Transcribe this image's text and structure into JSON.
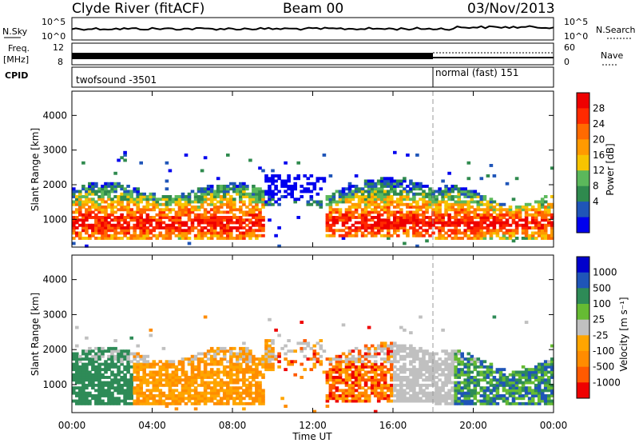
{
  "header": {
    "station": "Clyde River (fitACF)",
    "beam": "Beam 00",
    "date": "03/Nov/2013"
  },
  "nsky_panel": {
    "left_label": "N.Sky",
    "left_ticks": [
      "10^5",
      "10^0"
    ],
    "right_label": "N.Search",
    "right_ticks": [
      "10^5",
      "10^0"
    ]
  },
  "freq_panel": {
    "label_top": "Freq.",
    "label_unit": "[MHz]",
    "left_ticks": [
      "12",
      "8"
    ],
    "right_label": "Nave",
    "right_ticks": [
      "60",
      "0"
    ]
  },
  "cpid_panel": {
    "label": "CPID",
    "mode_1": "twofsound -3501",
    "mode_2": "normal (fast) 151",
    "mode_switch_hour": 18
  },
  "colors": {
    "power": [
      "#0000ee",
      "#1f55b8",
      "#2f8a4e",
      "#5bb85b",
      "#f7c400",
      "#ff9a00",
      "#ff6a00",
      "#ff2a00",
      "#ee0000"
    ],
    "velocity": [
      "#ee0000",
      "#ff5a00",
      "#ff8c00",
      "#ffa500",
      "#c0c0c0",
      "#66bb33",
      "#2e8b57",
      "#1f55b8",
      "#0000cc"
    ]
  },
  "chart_data": [
    {
      "type": "heatmap",
      "name": "power",
      "ylabel": "Slant Range [km]",
      "ylim": [
        200,
        4700
      ],
      "yticks": [
        "4000",
        "3000",
        "2000",
        "1000"
      ],
      "colorbar_label": "Power [dB]",
      "colorbar_ticks": [
        "28",
        "24",
        "20",
        "16",
        "12",
        "8",
        "4"
      ]
    },
    {
      "type": "heatmap",
      "name": "velocity",
      "ylabel": "Slant Range [km]",
      "ylim": [
        200,
        4700
      ],
      "yticks": [
        "4000",
        "3000",
        "2000",
        "1000"
      ],
      "colorbar_label": "Velocity [m s⁻¹]",
      "colorbar_ticks": [
        "1000",
        "500",
        "100",
        "25",
        "-25",
        "-100",
        "-500",
        "-1000"
      ]
    }
  ],
  "xaxis": {
    "label": "Time UT",
    "xlim": [
      0,
      24
    ],
    "ticks": [
      "00:00",
      "04:00",
      "08:00",
      "12:00",
      "16:00",
      "20:00",
      "00:00"
    ]
  }
}
